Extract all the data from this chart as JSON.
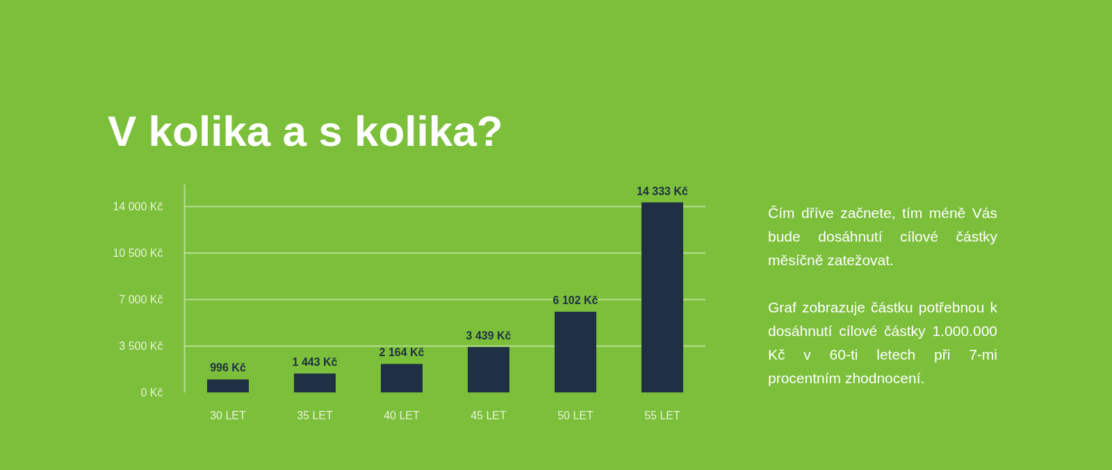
{
  "chart_data": {
    "type": "bar",
    "title": "V kolika a s kolika?",
    "categories": [
      "30 LET",
      "35 LET",
      "40 LET",
      "45 LET",
      "50 LET",
      "55 LET"
    ],
    "values": [
      996,
      1443,
      2164,
      3439,
      6102,
      14333
    ],
    "value_labels": [
      "996 Kč",
      "1 443 Kč",
      "2 164 Kč",
      "3 439 Kč",
      "6 102 Kč",
      "14 333 Kč"
    ],
    "color": "#1f3044",
    "ylim": [
      0,
      15700
    ],
    "yticks": [
      {
        "value": 0,
        "label": "0 Kč"
      },
      {
        "value": 3500,
        "label": "3 500 Kč"
      },
      {
        "value": 7000,
        "label": "7 000 Kč"
      },
      {
        "value": 10500,
        "label": "10 500 Kč"
      },
      {
        "value": 14000,
        "label": "14 000 Kč"
      }
    ],
    "grid": "y",
    "annotations": [
      "Čím dříve začnete, tím méně Vás bude dosáhnutí cílové částky měsíčně zatežovat.",
      "Graf zobrazuje částku potřebnou k dosáhnutí cílové částky 1.000.000 Kč v 60-ti letech při 7-mi procentním zhodnocení."
    ]
  }
}
